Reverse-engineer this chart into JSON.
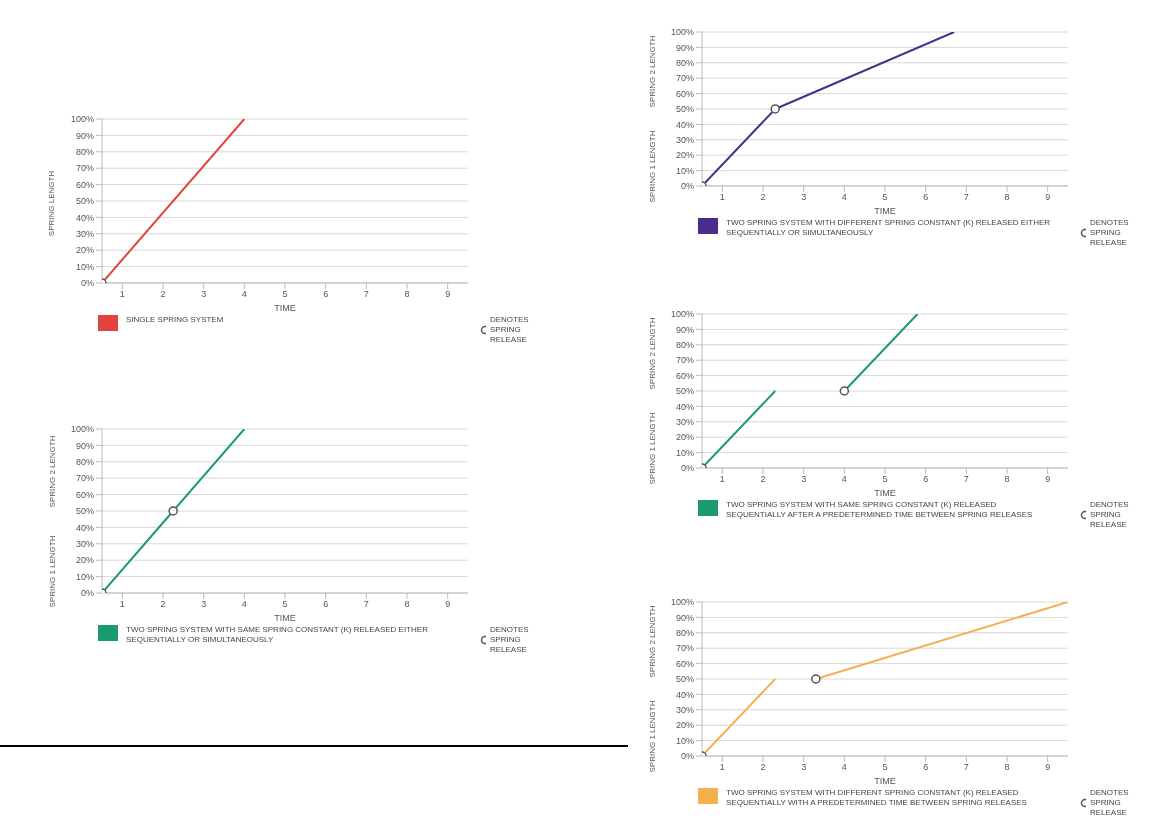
{
  "chart_data": [
    {
      "type": "line",
      "xlabel": "TIME",
      "ylabel": "SPRING LENGTH",
      "xlim": [
        0.5,
        9.5
      ],
      "xticks": [
        1,
        2,
        3,
        4,
        5,
        6,
        7,
        8,
        9
      ],
      "ylim": [
        0,
        100
      ],
      "yticks": [
        {
          "value": 0,
          "label": "0%"
        },
        {
          "value": 10,
          "label": "10%"
        },
        {
          "value": 20,
          "label": "20%"
        },
        {
          "value": 30,
          "label": "30%"
        },
        {
          "value": 40,
          "label": "40%"
        },
        {
          "value": 50,
          "label": "50%"
        },
        {
          "value": 60,
          "label": "60%"
        },
        {
          "value": 70,
          "label": "70%"
        },
        {
          "value": 80,
          "label": "80%"
        },
        {
          "value": 90,
          "label": "90%"
        },
        {
          "value": 100,
          "label": "100%"
        }
      ],
      "grid": "y",
      "legend": "bottom",
      "series": [
        {
          "name": "SINGLE SPRING SYSTEM",
          "color": "#e0443c",
          "x": [
            0.5,
            4
          ],
          "values": [
            0,
            100
          ]
        },
        {
          "name": "DENOTES SPRING RELEASE",
          "type": "scatter",
          "marker": "circle",
          "color": "#555555",
          "x": [
            0.5
          ],
          "values": [
            0
          ]
        }
      ]
    },
    {
      "type": "line",
      "xlabel": "TIME",
      "ylabel": "SPRING 1 LENGTH",
      "annotations": [
        "SPRING 2 LENGTH"
      ],
      "xlim": [
        0.5,
        9.5
      ],
      "xticks": [
        1,
        2,
        3,
        4,
        5,
        6,
        7,
        8,
        9
      ],
      "ylim": [
        0,
        100
      ],
      "yticks": [
        {
          "value": 0,
          "label": "0%"
        },
        {
          "value": 10,
          "label": "10%"
        },
        {
          "value": 20,
          "label": "20%"
        },
        {
          "value": 30,
          "label": "30%"
        },
        {
          "value": 40,
          "label": "40%"
        },
        {
          "value": 50,
          "label": "50%"
        },
        {
          "value": 60,
          "label": "60%"
        },
        {
          "value": 70,
          "label": "70%"
        },
        {
          "value": 80,
          "label": "80%"
        },
        {
          "value": 90,
          "label": "90%"
        },
        {
          "value": 100,
          "label": "100%"
        }
      ],
      "grid": "y",
      "legend": "bottom",
      "series": [
        {
          "name": "TWO SPRING SYSTEM WITH SAME SPRING CONSTANT (K) RELEASED EITHER SEQUENTIALLY OR SIMULTANEOUSLY",
          "color": "#1b9a6e",
          "x": [
            0.5,
            2.25,
            4
          ],
          "values": [
            0,
            50,
            100
          ]
        },
        {
          "name": "DENOTES SPRING RELEASE",
          "type": "scatter",
          "marker": "circle",
          "color": "#555555",
          "x": [
            0.5,
            2.25
          ],
          "values": [
            0,
            50
          ]
        }
      ]
    },
    {
      "type": "line",
      "xlabel": "TIME",
      "ylabel": "SPRING 1 LENGTH",
      "annotations": [
        "SPRING 2 LENGTH"
      ],
      "xlim": [
        0.5,
        9.5
      ],
      "xticks": [
        1,
        2,
        3,
        4,
        5,
        6,
        7,
        8,
        9
      ],
      "ylim": [
        0,
        100
      ],
      "yticks": [
        {
          "value": 0,
          "label": "0%"
        },
        {
          "value": 10,
          "label": "10%"
        },
        {
          "value": 20,
          "label": "20%"
        },
        {
          "value": 30,
          "label": "30%"
        },
        {
          "value": 40,
          "label": "40%"
        },
        {
          "value": 50,
          "label": "50%"
        },
        {
          "value": 60,
          "label": "60%"
        },
        {
          "value": 70,
          "label": "70%"
        },
        {
          "value": 80,
          "label": "80%"
        },
        {
          "value": 90,
          "label": "90%"
        },
        {
          "value": 100,
          "label": "100%"
        }
      ],
      "grid": "y",
      "legend": "bottom",
      "series": [
        {
          "name": "TWO SPRING SYSTEM WITH DIFFERENT SPRING CONSTANT (K) RELEASED EITHER SEQUENTIALLY OR SIMULTANEOUSLY",
          "color": "#4a2d8c",
          "x": [
            0.5,
            2.3,
            6.7
          ],
          "values": [
            0,
            50,
            100
          ]
        },
        {
          "name": "DENOTES SPRING RELEASE",
          "type": "scatter",
          "marker": "circle",
          "color": "#555555",
          "x": [
            0.5,
            2.3
          ],
          "values": [
            0,
            50
          ]
        }
      ]
    },
    {
      "type": "line",
      "xlabel": "TIME",
      "ylabel": "SPRING 1 LENGTH",
      "annotations": [
        "SPRING 2 LENGTH"
      ],
      "xlim": [
        0.5,
        9.5
      ],
      "xticks": [
        1,
        2,
        3,
        4,
        5,
        6,
        7,
        8,
        9
      ],
      "ylim": [
        0,
        100
      ],
      "yticks": [
        {
          "value": 0,
          "label": "0%"
        },
        {
          "value": 10,
          "label": "10%"
        },
        {
          "value": 20,
          "label": "20%"
        },
        {
          "value": 30,
          "label": "30%"
        },
        {
          "value": 40,
          "label": "40%"
        },
        {
          "value": 50,
          "label": "50%"
        },
        {
          "value": 60,
          "label": "60%"
        },
        {
          "value": 70,
          "label": "70%"
        },
        {
          "value": 80,
          "label": "80%"
        },
        {
          "value": 90,
          "label": "90%"
        },
        {
          "value": 100,
          "label": "100%"
        }
      ],
      "grid": "y",
      "legend": "bottom",
      "series": [
        {
          "name": "TWO SPRING SYSTEM WITH SAME SPRING CONSTANT (K) RELEASED SEQUENTIALLY AFTER A PREDETERMINED TIME BETWEEN SPRING RELEASES",
          "color": "#1b9a6e",
          "x": [
            0.5,
            2.3
          ],
          "values": [
            0,
            50
          ]
        },
        {
          "color": "#1b9a6e",
          "x": [
            4,
            5.8
          ],
          "values": [
            50,
            100
          ]
        },
        {
          "name": "DENOTES SPRING RELEASE",
          "type": "scatter",
          "marker": "circle",
          "color": "#555555",
          "x": [
            0.5,
            4
          ],
          "values": [
            0,
            50
          ]
        }
      ]
    },
    {
      "type": "line",
      "xlabel": "TIME",
      "ylabel": "SPRING 1 LENGTH",
      "annotations": [
        "SPRING 2 LENGTH"
      ],
      "xlim": [
        0.5,
        9.5
      ],
      "xticks": [
        1,
        2,
        3,
        4,
        5,
        6,
        7,
        8,
        9
      ],
      "ylim": [
        0,
        100
      ],
      "yticks": [
        {
          "value": 0,
          "label": "0%"
        },
        {
          "value": 10,
          "label": "10%"
        },
        {
          "value": 20,
          "label": "20%"
        },
        {
          "value": 30,
          "label": "30%"
        },
        {
          "value": 40,
          "label": "40%"
        },
        {
          "value": 50,
          "label": "50%"
        },
        {
          "value": 60,
          "label": "60%"
        },
        {
          "value": 70,
          "label": "70%"
        },
        {
          "value": 80,
          "label": "80%"
        },
        {
          "value": 90,
          "label": "90%"
        },
        {
          "value": 100,
          "label": "100%"
        }
      ],
      "grid": "y",
      "legend": "bottom",
      "series": [
        {
          "name": "TWO SPRING SYSTEM WITH DIFFERENT SPRING CONSTANT (K) RELEASED SEQUENTIALLY WITH A PREDETERMINED TIME BETWEEN SPRING RELEASES",
          "color": "#f4b04c",
          "x": [
            0.5,
            2.3
          ],
          "values": [
            0,
            50
          ]
        },
        {
          "color": "#f4b04c",
          "x": [
            3.3,
            9.5
          ],
          "values": [
            50,
            100
          ]
        },
        {
          "name": "DENOTES SPRING RELEASE",
          "type": "scatter",
          "marker": "circle",
          "color": "#555555",
          "x": [
            0.5,
            3.3
          ],
          "values": [
            0,
            50
          ]
        }
      ]
    }
  ]
}
